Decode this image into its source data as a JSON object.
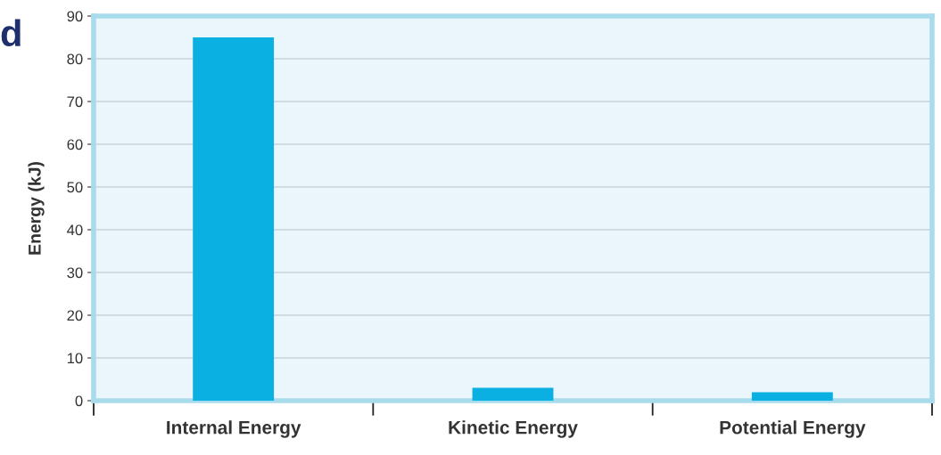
{
  "chart_data": {
    "type": "bar",
    "ylabel": "Energy (kJ)",
    "categories": [
      "Internal Energy",
      "Kinetic Energy",
      "Potential Energy"
    ],
    "values": [
      85,
      3,
      2
    ],
    "color": "#0bb0e3",
    "ylim": [
      0,
      90
    ],
    "yticks": [
      0,
      10,
      20,
      30,
      40,
      50,
      60,
      70,
      80,
      90
    ],
    "grid": "y",
    "annotations": [
      "d"
    ]
  }
}
